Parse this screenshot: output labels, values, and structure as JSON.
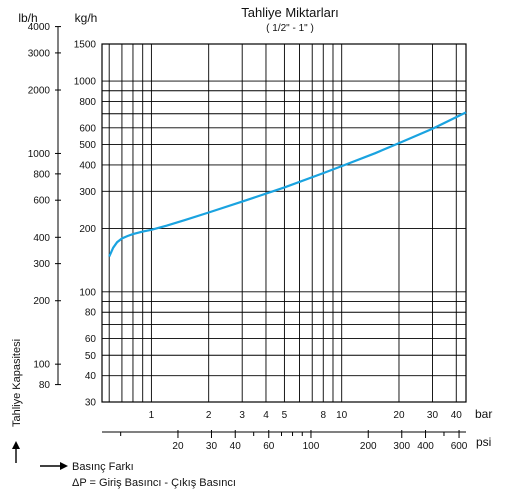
{
  "chart_data": {
    "type": "line",
    "title": "Tahliye Miktarları",
    "subtitle": "( 1/2\" - 1\" )",
    "kgh_unit": "kg/h",
    "lbh_unit": "lb/h",
    "bar_unit": "bar",
    "psi_unit": "psi",
    "ylabel": "Tahliye Kapasitesi",
    "xlabel": "Basınç Farkı",
    "formula": "ΔP = Giriş Basıncı - Çıkış Basıncı",
    "x_scale": "log",
    "y_scale": "log",
    "xlim_bar": [
      0.55,
      45
    ],
    "ylim_kgh": [
      30,
      1500
    ],
    "kgh_ticks": [
      30,
      40,
      50,
      60,
      80,
      100,
      200,
      300,
      400,
      500,
      600,
      800,
      1000,
      1500
    ],
    "kgh_gridlines": [
      30,
      40,
      50,
      60,
      70,
      80,
      90,
      100,
      200,
      300,
      400,
      500,
      600,
      700,
      800,
      900,
      1000,
      1500
    ],
    "lbh_ticks": [
      80,
      100,
      200,
      300,
      400,
      600,
      800,
      1000,
      2000,
      3000,
      4000
    ],
    "bar_ticks": [
      1,
      2,
      3,
      4,
      5,
      8,
      10,
      20,
      30,
      40
    ],
    "bar_gridlines": [
      0.6,
      0.7,
      0.8,
      0.9,
      1,
      2,
      3,
      4,
      5,
      6,
      7,
      8,
      9,
      10,
      20,
      30,
      40
    ],
    "psi_ticks": [
      20,
      30,
      40,
      60,
      100,
      200,
      300,
      400,
      600
    ],
    "psi_minor": [
      10,
      50,
      70,
      80,
      90,
      500
    ],
    "grid": true,
    "series": [
      {
        "x": [
          0.6,
          0.63,
          0.66,
          0.7,
          0.75,
          0.8,
          0.9,
          1.0,
          1.2,
          1.5,
          2,
          3,
          5,
          8,
          10,
          15,
          20,
          30,
          45
        ],
        "y": [
          147,
          162,
          172,
          179,
          184,
          188,
          193,
          197,
          206,
          219,
          238,
          268,
          313,
          366,
          395,
          455,
          508,
          594,
          710
        ]
      }
    ]
  }
}
